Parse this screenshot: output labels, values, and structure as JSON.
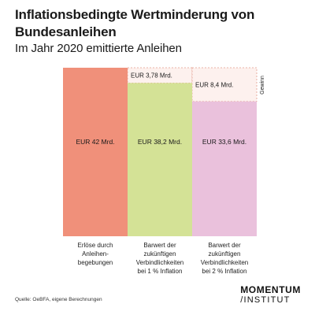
{
  "title": "Inflationsbedingte Wertminderung von Bundesanleihen",
  "subtitle": "Im Jahr 2020 emittierte Anleihen",
  "source": "Quelle: OeBFA, eigene Berechnungen",
  "logo": {
    "line1": "MOMENTUM",
    "line2": "/INSTITUT"
  },
  "colors": {
    "bar1": "#F0907A",
    "bar2": "#D4E296",
    "bar3": "#EAC1DC",
    "gain_fill": "#FDF1EE",
    "gain_border": "#E39C8C"
  },
  "chart_data": {
    "type": "bar",
    "categories": [
      "Erlöse durch Anleihen-begebungen",
      "Barwert der zukünftigen Verbindlichkeiten bei 1 % Inflation",
      "Barwert der zukünftigen Verbindlichkeiten bei 2 % Inflation"
    ],
    "category_lines": [
      [
        "Erlöse durch",
        "Anleihen-",
        "begebungen"
      ],
      [
        "Barwert der",
        "zukünftigen",
        "Verbindlichkeiten",
        "bei 1 % Inflation"
      ],
      [
        "Barwert der",
        "zukünftigen",
        "Verbindlichkeiten",
        "bei 2 % Inflation"
      ]
    ],
    "values": [
      42,
      38.2,
      33.6
    ],
    "value_labels": [
      "EUR 42 Mrd.",
      "EUR 38,2 Mrd.",
      "EUR 33,6 Mrd."
    ],
    "gain_values": [
      0,
      3.78,
      8.4
    ],
    "gain_labels": [
      "",
      "EUR 3,78 Mrd.",
      "EUR 8,4 Mrd."
    ],
    "gain_axis_label": "Gewinn",
    "ylim": [
      0,
      42
    ]
  }
}
